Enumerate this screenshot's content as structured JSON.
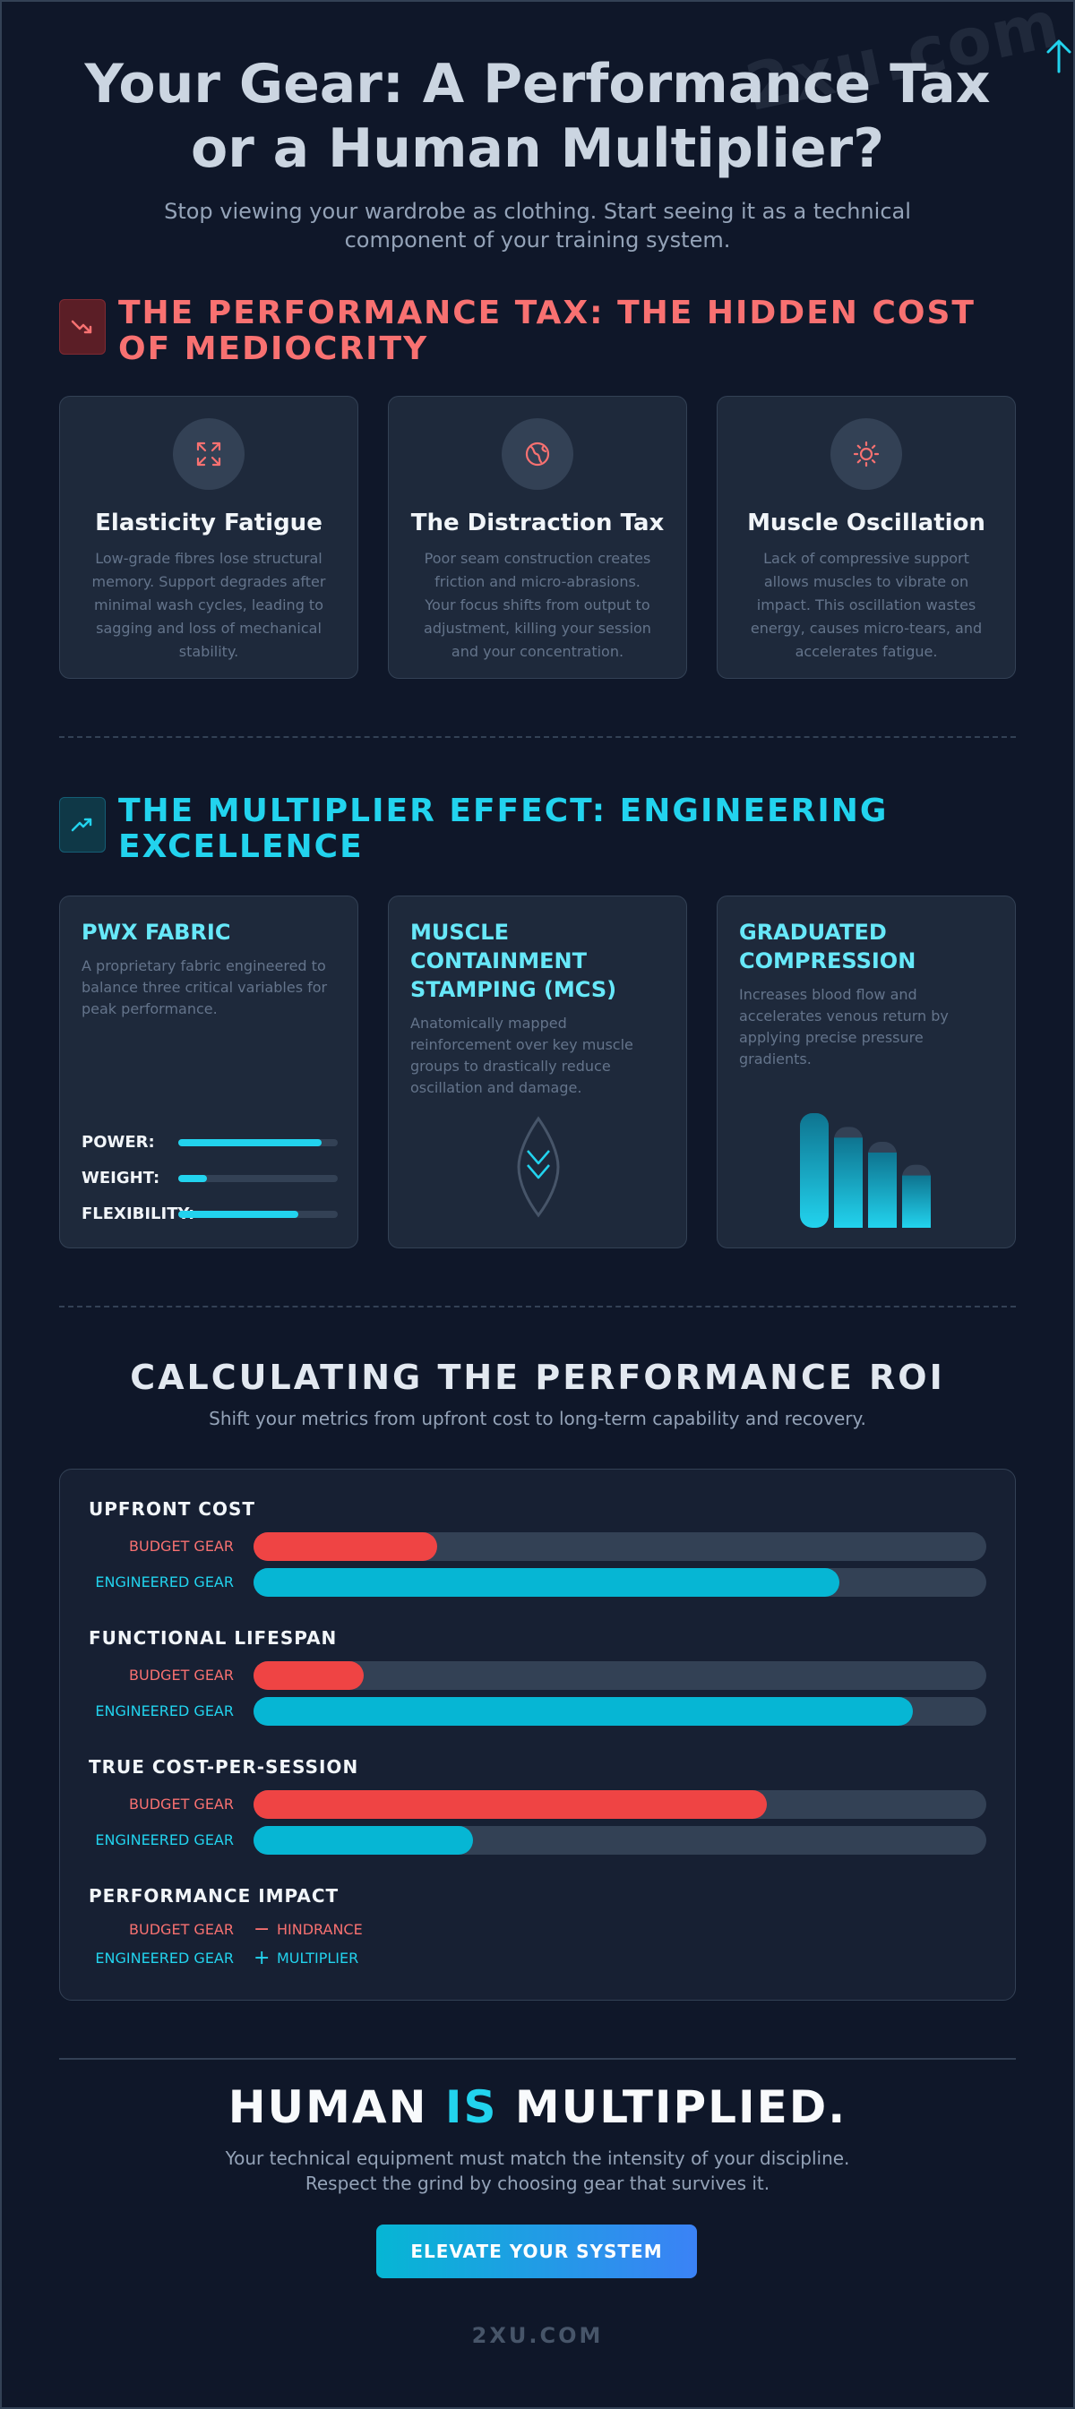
{
  "watermark": "2xu.com",
  "hero": {
    "title": "Your Gear: A Performance Tax or a Human Multiplier?",
    "subtitle": "Stop viewing your wardrobe as clothing. Start seeing it as a technical component of your training system."
  },
  "tax_section": {
    "icon": "trending-down-icon",
    "title": "THE PERFORMANCE TAX: THE HIDDEN COST OF MEDIOCRITY",
    "accent": "#f87171",
    "cards": [
      {
        "icon": "expand-arrows-icon",
        "title": "Elasticity Fatigue",
        "body": "Low-grade fibres lose structural memory. Support degrades after minimal wash cycles, leading to sagging and loss of mechanical stability."
      },
      {
        "icon": "globe-friction-icon",
        "title": "The Distraction Tax",
        "body": "Poor seam construction creates friction and micro-abrasions. Your focus shifts from output to adjustment, killing your session and your concentration."
      },
      {
        "icon": "sun-vibration-icon",
        "title": "Muscle Oscillation",
        "body": "Lack of compressive support allows muscles to vibrate on impact. This oscillation wastes energy, causes micro-tears, and accelerates fatigue."
      }
    ]
  },
  "mult_section": {
    "icon": "trending-up-icon",
    "title": "THE MULTIPLIER EFFECT: ENGINEERING EXCELLENCE",
    "accent": "#22d3ee",
    "cards": [
      {
        "title": "PWX FABRIC",
        "body": "A proprietary fabric engineered to balance three critical variables for peak performance.",
        "meters": [
          {
            "label": "POWER:",
            "value": 0.9
          },
          {
            "label": "WEIGHT:",
            "value": 0.18
          },
          {
            "label": "FLEXIBILITY:",
            "value": 0.75
          }
        ]
      },
      {
        "title": "MUSCLE CONTAINMENT STAMPING (MCS)",
        "body": "Anatomically mapped reinforcement over key muscle groups to drastically reduce oscillation and damage.",
        "icon": "muscle-chevron-icon"
      },
      {
        "title": "GRADUATED COMPRESSION",
        "body": "Increases blood flow and accelerates venous return by applying precise pressure gradients.",
        "icon": "compression-gradient-icon",
        "levels": [
          1.0,
          0.88,
          0.75,
          0.55
        ]
      }
    ]
  },
  "roi": {
    "title": "CALCULATING THE PERFORMANCE ROI",
    "subtitle": "Shift your metrics from upfront cost to long-term capability and recovery.",
    "budget_label": "BUDGET GEAR",
    "engineered_label": "ENGINEERED GEAR",
    "budget_color": "#ef4444",
    "engineered_color": "#06b6d4",
    "metrics": [
      {
        "name": "UPFRONT COST",
        "budget": 0.25,
        "engineered": 0.8
      },
      {
        "name": "FUNCTIONAL LIFESPAN",
        "budget": 0.15,
        "engineered": 0.9
      },
      {
        "name": "TRUE COST-PER-SESSION",
        "budget": 0.7,
        "engineered": 0.3
      }
    ],
    "impact": {
      "name": "PERFORMANCE IMPACT",
      "budget_symbol": "−",
      "budget_value": "HINDRANCE",
      "engineered_symbol": "+",
      "engineered_value": "MULTIPLIER"
    }
  },
  "closing": {
    "title_part1": "HUMAN ",
    "title_accent": "IS",
    "title_part2": " MULTIPLIED.",
    "line1": "Your technical equipment must match the intensity of your discipline.",
    "line2": "Respect the grind by choosing gear that survives it.",
    "cta": "ELEVATE YOUR SYSTEM",
    "brand": "2XU.COM"
  }
}
